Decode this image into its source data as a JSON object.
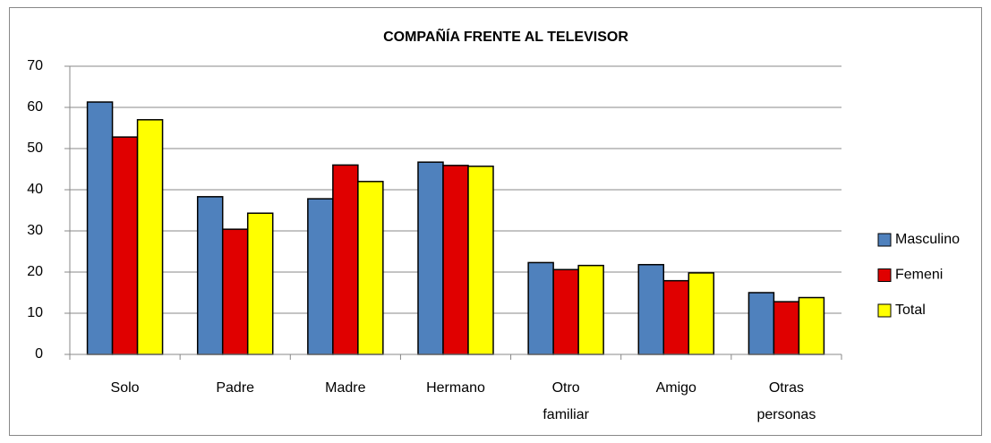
{
  "chart_data": {
    "type": "bar",
    "title": "COMPAÑÍA FRENTE AL TELEVISOR",
    "categories": [
      "Solo",
      "Padre",
      "Madre",
      "Hermano",
      "Otro familiar",
      "Amigo",
      "Otras personas"
    ],
    "series": [
      {
        "name": "Masculino",
        "color": "#4f81bd",
        "values": [
          61.3,
          38.3,
          37.8,
          46.7,
          22.3,
          21.8,
          15.0
        ]
      },
      {
        "name": "Femeni",
        "color": "#e00000",
        "values": [
          52.8,
          30.4,
          46.0,
          45.9,
          20.6,
          17.9,
          12.8
        ]
      },
      {
        "name": "Total",
        "color": "#ffff00",
        "values": [
          57.0,
          34.3,
          42.0,
          45.7,
          21.6,
          19.8,
          13.8
        ]
      }
    ],
    "ylim": [
      0,
      70
    ],
    "yticks": [
      0,
      10,
      20,
      30,
      40,
      50,
      60,
      70
    ],
    "grid": true,
    "legend": "right"
  }
}
